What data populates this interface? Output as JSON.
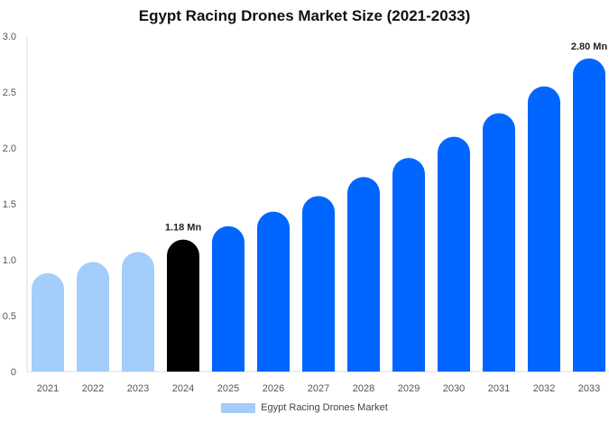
{
  "chart_data": {
    "type": "bar",
    "title": "Egypt Racing Drones Market Size (2021-2033)",
    "categories": [
      "2021",
      "2022",
      "2023",
      "2024",
      "2025",
      "2026",
      "2027",
      "2028",
      "2029",
      "2030",
      "2031",
      "2032",
      "2033"
    ],
    "series": [
      {
        "name": "Egypt Racing Drones Market",
        "values": [
          0.88,
          0.98,
          1.07,
          1.18,
          1.3,
          1.43,
          1.57,
          1.74,
          1.91,
          2.1,
          2.31,
          2.55,
          2.8
        ]
      }
    ],
    "data_labels": {
      "3": "1.18 Mn",
      "12": "2.80 Mn"
    },
    "ylim": [
      0,
      3.0
    ],
    "yticks": [
      "0",
      "0.5",
      "1.0",
      "1.5",
      "2.0",
      "2.5",
      "3.0"
    ],
    "xlabel": "",
    "ylabel": "",
    "grid": false,
    "legend_position": "bottom",
    "colors": {
      "historical": "#a3cdfb",
      "base_year": "#000000",
      "forecast": "#0066ff"
    }
  }
}
